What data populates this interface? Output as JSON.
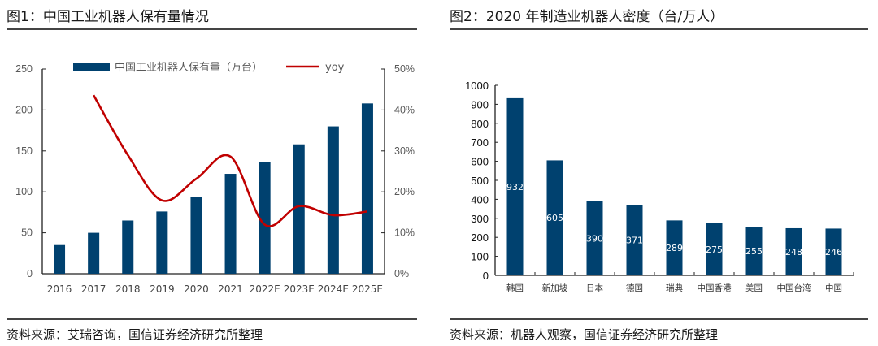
{
  "figure1": {
    "title": "图1：中国工业机器人保有量情况",
    "source": "资料来源：艾瑞咨询，国信证券经济研究所整理"
  },
  "figure2": {
    "title": "图2：2020 年制造业机器人密度（台/万人）",
    "source": "资料来源：机器人观察，国信证券经济研究所整理"
  },
  "colors": {
    "bar": "#00416F",
    "line": "#C00000",
    "axis": "#222222"
  },
  "chart_data": [
    {
      "type": "bar+line",
      "title": "中国工业机器人保有量情况",
      "categories": [
        "2016",
        "2017",
        "2018",
        "2019",
        "2020",
        "2021",
        "2022E",
        "2023E",
        "2024E",
        "2025E"
      ],
      "series": [
        {
          "name": "中国工业机器人保有量（万台）",
          "type": "bar",
          "axis": "left",
          "values": [
            35,
            50,
            65,
            76,
            94,
            122,
            136,
            158,
            180,
            208
          ]
        },
        {
          "name": "yoy",
          "type": "line",
          "axis": "right",
          "unit": "%",
          "values": [
            null,
            43.6,
            29.0,
            17.9,
            23.2,
            28.6,
            12.0,
            16.5,
            14.3,
            15.2
          ]
        }
      ],
      "y_left": {
        "ylim": [
          0,
          250
        ],
        "ticks": [
          "0",
          "50",
          "100",
          "150",
          "200",
          "250"
        ]
      },
      "y_right": {
        "ylim": [
          0,
          50
        ],
        "ticks": [
          "0%",
          "10%",
          "20%",
          "30%",
          "40%",
          "50%"
        ]
      },
      "legend": {
        "placement": "top",
        "entries": [
          "中国工业机器人保有量（万台）",
          "yoy"
        ]
      },
      "grid": false
    },
    {
      "type": "bar",
      "title": "2020 年制造业机器人密度（台/万人）",
      "categories": [
        "韩国",
        "新加坡",
        "日本",
        "德国",
        "瑞典",
        "中国香港",
        "美国",
        "中国台湾",
        "中国"
      ],
      "values": [
        932,
        605,
        390,
        371,
        289,
        275,
        255,
        248,
        246
      ],
      "data_labels": [
        "932",
        "605",
        "390",
        "371",
        "289",
        "275",
        "255",
        "248",
        "246"
      ],
      "ylim": [
        0,
        1000
      ],
      "yticks": [
        "0",
        "100",
        "200",
        "300",
        "400",
        "500",
        "600",
        "700",
        "800",
        "900",
        "1000"
      ],
      "grid": false
    }
  ]
}
